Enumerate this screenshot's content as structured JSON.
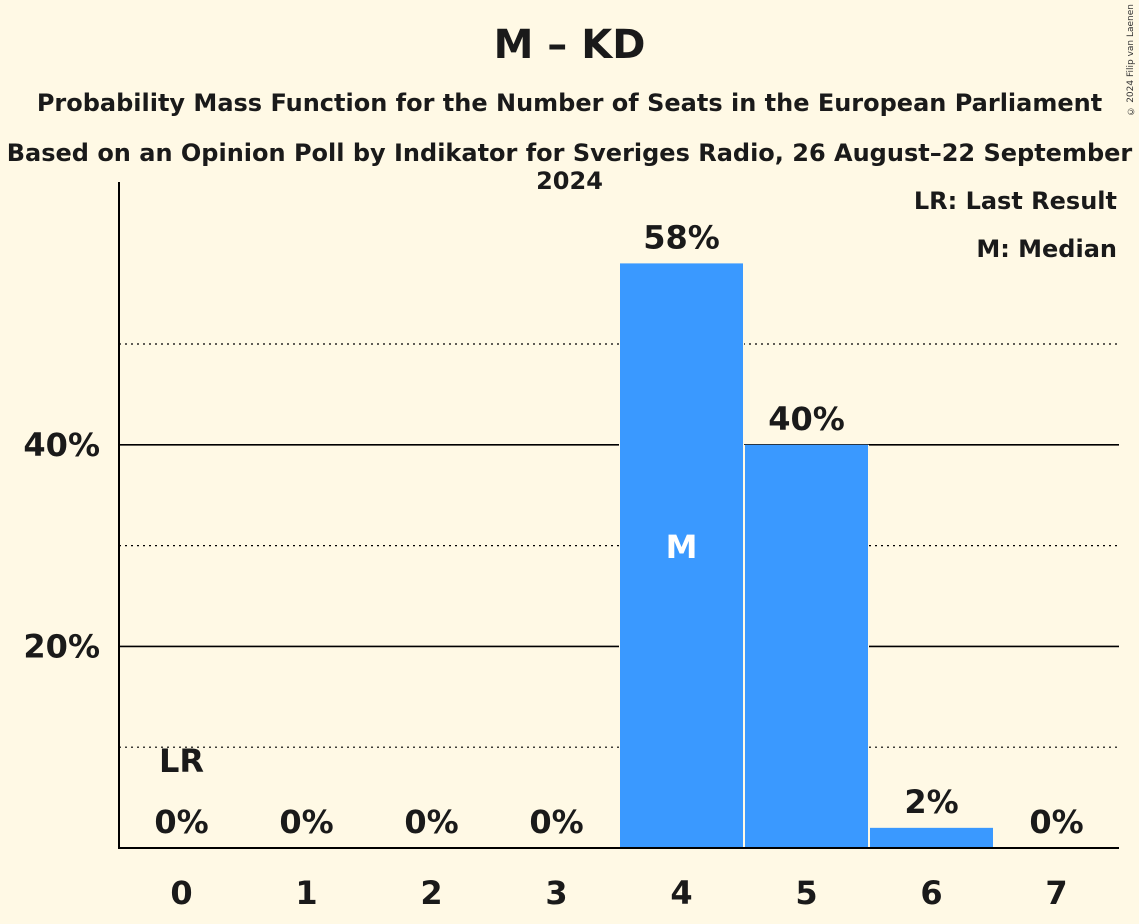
{
  "header": {
    "title": "M – KD",
    "subtitle": "Probability Mass Function for the Number of Seats in the European Parliament",
    "subtitle2": "Based on an Opinion Poll by Indikator for Sveriges Radio, 26 August–22 September 2024",
    "copyright": "© 2024 Filip van Laenen"
  },
  "legend": {
    "last_result": "LR: Last Result",
    "median": "M: Median"
  },
  "chart_data": {
    "type": "bar",
    "categories": [
      "0",
      "1",
      "2",
      "3",
      "4",
      "5",
      "6",
      "7"
    ],
    "values": [
      0,
      0,
      0,
      0,
      58,
      40,
      2,
      0
    ],
    "value_labels": [
      "0%",
      "0%",
      "0%",
      "0%",
      "58%",
      "40%",
      "2%",
      "0%"
    ],
    "ylim": [
      0,
      63
    ],
    "y_ticks": [
      {
        "value": 20,
        "label": "20%"
      },
      {
        "value": 40,
        "label": "40%"
      }
    ],
    "minor_gridlines": [
      10,
      30,
      50
    ],
    "last_result_index": 0,
    "last_result_label": "LR",
    "median_index": 4,
    "median_label": "M",
    "bar_color": "#3A99FF",
    "background": "#FFF9E5",
    "legend_position": "top-right"
  }
}
